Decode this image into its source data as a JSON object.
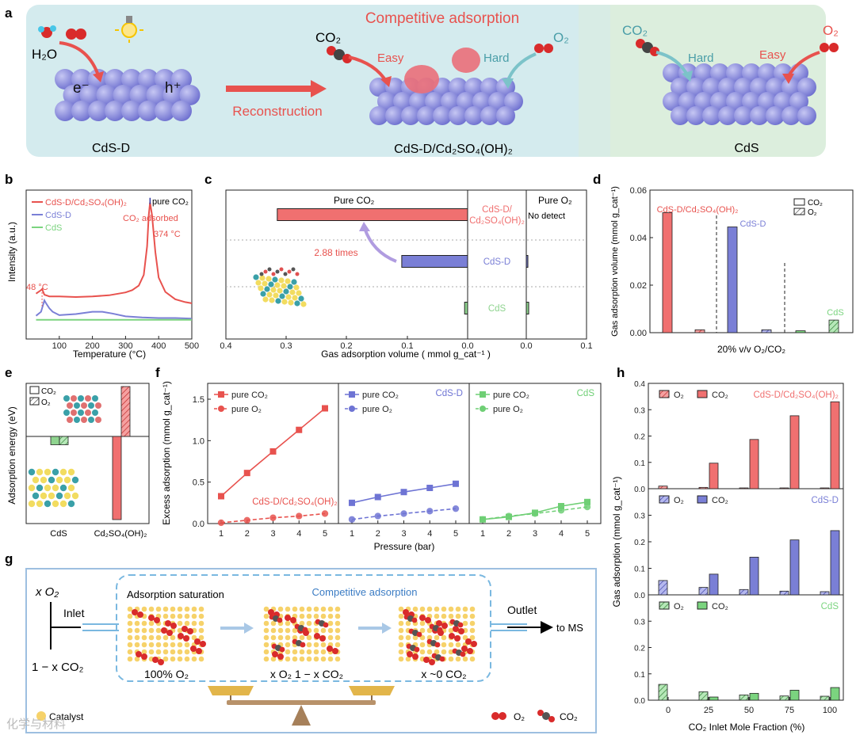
{
  "figure": {
    "panel_labels": [
      "a",
      "b",
      "c",
      "d",
      "e",
      "f",
      "g",
      "h"
    ],
    "watermark": "化学与材料"
  },
  "panel_a": {
    "title_competitive": "Competitive adsorption",
    "h2o": "H₂O",
    "electron": "e⁻",
    "hole": "h⁺",
    "reconstruction": "Reconstruction",
    "co2": "CO₂",
    "o2": "O₂",
    "easy": "Easy",
    "hard": "Hard",
    "label_cdsd": "CdS-D",
    "label_composite": "CdS-D/Cd₂SO₄(OH)₂",
    "label_cds": "CdS",
    "colors": {
      "left_bg": "#d4ebee",
      "right_bg": "#dceedd",
      "sphere": "#8f90df",
      "sulfur": "#f2e84a",
      "arrow": "#e8524e"
    }
  },
  "chart_data": [
    {
      "panel": "b",
      "type": "line",
      "title": "pure CO₂",
      "xlabel": "Temperature (°C)",
      "ylabel": "Intensity (a.u.)",
      "xlim": [
        0,
        500
      ],
      "x_ticks": [
        "100",
        "200",
        "300",
        "400",
        "500"
      ],
      "legend": [
        "CdS-D/Cd₂SO₄(OH)₂",
        "CdS-D",
        "CdS"
      ],
      "annotations": [
        "CO₂ adsorbed",
        "374 °C",
        "48 °C"
      ],
      "series": [
        {
          "name": "CdS-D/Cd₂SO₄(OH)₂",
          "color": "#e8524e",
          "x": [
            30,
            45,
            48,
            55,
            70,
            100,
            150,
            200,
            250,
            300,
            320,
            340,
            355,
            365,
            370,
            374,
            380,
            390,
            400,
            420,
            450,
            480,
            500
          ],
          "y": [
            0.52,
            0.58,
            0.6,
            0.5,
            0.47,
            0.47,
            0.46,
            0.47,
            0.49,
            0.54,
            0.58,
            0.66,
            0.85,
            1.35,
            1.9,
            2.12,
            1.9,
            1.25,
            0.8,
            0.55,
            0.42,
            0.37,
            0.35
          ]
        },
        {
          "name": "CdS-D",
          "color": "#7a7fd6",
          "x": [
            30,
            45,
            55,
            60,
            70,
            80,
            100,
            150,
            200,
            230,
            260,
            300,
            350,
            400,
            450,
            500
          ],
          "y": [
            0.13,
            0.2,
            0.4,
            0.35,
            0.26,
            0.2,
            0.14,
            0.16,
            0.2,
            0.2,
            0.17,
            0.12,
            0.1,
            0.09,
            0.09,
            0.08
          ]
        },
        {
          "name": "CdS",
          "color": "#7bd47f",
          "x": [
            30,
            100,
            200,
            300,
            400,
            500
          ],
          "y": [
            0.06,
            0.06,
            0.06,
            0.06,
            0.06,
            0.06
          ]
        }
      ]
    },
    {
      "panel": "c",
      "type": "bar",
      "orientation": "horizontal",
      "xlabel": "Gas adsorption volume ( mmol g_cat⁻¹ )",
      "x_ticks": [
        "0.4",
        "0.3",
        "0.2",
        "0.1",
        "0.0",
        "0.1"
      ],
      "left_label": "Pure CO₂",
      "right_label": "Pure O₂",
      "no_detect": "No detect",
      "ratio_label": "2.88 times",
      "categories": [
        "CdS-D/Cd₂SO₄(OH)₂",
        "CdS-D",
        "CdS"
      ],
      "category_lines": [
        [
          "CdS-D/",
          "Cd₂SO₄(OH)₂"
        ],
        [
          "CdS-D"
        ],
        [
          "CdS"
        ]
      ],
      "co2_values": [
        0.315,
        0.109,
        0.005
      ],
      "o2_values": [
        0.0,
        0.002,
        0.004
      ],
      "colors": [
        "#f07070",
        "#7a7fd6",
        "#8fd48f"
      ]
    },
    {
      "panel": "d",
      "type": "bar",
      "xlabel": "20% v/v O₂/CO₂",
      "ylabel": "Gas adsorption volume (mmol g_cat⁻¹)",
      "ylim": [
        0,
        0.06
      ],
      "y_ticks": [
        "0.00",
        "0.02",
        "0.04",
        "0.06"
      ],
      "legend": [
        "CO₂",
        "O₂"
      ],
      "categories": [
        "CdS-D/Cd₂SO₄(OH)₂",
        "CdS-D",
        "CdS"
      ],
      "series": [
        {
          "name": "CO₂",
          "values": [
            0.0505,
            0.0445,
            0.0008
          ]
        },
        {
          "name": "O₂",
          "values": [
            0.0012,
            0.0012,
            0.0053
          ]
        }
      ],
      "colors": [
        "#f07070",
        "#7a7fd6",
        "#7bd47f"
      ]
    },
    {
      "panel": "e",
      "type": "bar",
      "ylabel": "Adsorption energy (eV)",
      "categories": [
        "CdS",
        "Cd₂SO₄(OH)₂"
      ],
      "legend": [
        "CO₂",
        "O₂"
      ],
      "series": [
        {
          "name": "CO₂",
          "values": [
            -0.3,
            -3.0
          ]
        },
        {
          "name": "O₂",
          "values": [
            -0.3,
            1.8
          ]
        }
      ]
    },
    {
      "panel": "f",
      "type": "line",
      "xlabel": "Pressure (bar)",
      "ylabel": "Excess adsorption (mmol g_cat⁻¹)",
      "ylim": [
        0,
        1.5
      ],
      "y_ticks": [
        "0.0",
        "0.5",
        "1.0",
        "1.5"
      ],
      "x": [
        1,
        2,
        3,
        4,
        5
      ],
      "subplots": [
        {
          "label": "CdS-D/Cd₂SO₄(OH)₂",
          "color": "#e8524e",
          "series": [
            {
              "name": "pure CO₂",
              "values": [
                0.33,
                0.61,
                0.87,
                1.13,
                1.39
              ]
            },
            {
              "name": "pure O₂",
              "values": [
                0.01,
                0.04,
                0.07,
                0.09,
                0.12
              ]
            }
          ]
        },
        {
          "label": "CdS-D",
          "color": "#6e74d4",
          "series": [
            {
              "name": "pure CO₂",
              "values": [
                0.25,
                0.32,
                0.38,
                0.43,
                0.48
              ]
            },
            {
              "name": "pure O₂",
              "values": [
                0.05,
                0.09,
                0.12,
                0.15,
                0.18
              ]
            }
          ]
        },
        {
          "label": "CdS",
          "color": "#6fcf75",
          "series": [
            {
              "name": "pure CO₂",
              "values": [
                0.05,
                0.08,
                0.13,
                0.21,
                0.26
              ]
            },
            {
              "name": "pure O₂",
              "values": [
                0.05,
                0.09,
                0.12,
                0.16,
                0.2
              ]
            }
          ]
        }
      ]
    },
    {
      "panel": "h",
      "type": "bar",
      "xlabel": "CO₂ Inlet Mole Fraction (%)",
      "ylabel": "Gas adsorption (mmol g_cat⁻¹)",
      "ylim": [
        0,
        0.4
      ],
      "y_ticks": [
        "0.0",
        "0.1",
        "0.2",
        "0.3",
        "0.4"
      ],
      "categories": [
        "0",
        "25",
        "50",
        "75",
        "100"
      ],
      "subplots": [
        {
          "label": "CdS-D/Cd₂SO₄(OH)₂",
          "color": "#f07070",
          "series": [
            {
              "name": "O₂",
              "values": [
                0.01,
                0.005,
                0.003,
                0.003,
                0.003
              ]
            },
            {
              "name": "CO₂",
              "values": [
                0.0,
                0.097,
                0.187,
                0.277,
                0.33
              ]
            }
          ]
        },
        {
          "label": "CdS-D",
          "color": "#7a7fd6",
          "series": [
            {
              "name": "O₂",
              "values": [
                0.054,
                0.028,
                0.02,
                0.014,
                0.012
              ]
            },
            {
              "name": "CO₂",
              "values": [
                0.0,
                0.078,
                0.142,
                0.207,
                0.242
              ]
            }
          ]
        },
        {
          "label": "CdS",
          "color": "#7bd47f",
          "series": [
            {
              "name": "O₂",
              "values": [
                0.06,
                0.032,
                0.02,
                0.016,
                0.015
              ]
            },
            {
              "name": "CO₂",
              "values": [
                0.0,
                0.012,
                0.026,
                0.038,
                0.048
              ]
            }
          ]
        }
      ]
    }
  ],
  "panel_g": {
    "xo2": "x O₂",
    "inlet": "Inlet",
    "one_minus_x": "1 − x CO₂",
    "adsorption_saturation": "Adsorption saturation",
    "competitive_adsorption": "Competitive adsorption",
    "outlet": "Outlet",
    "to_ms": "to MS",
    "stage1": "100% O₂",
    "stage2": "x O₂  1 − x CO₂",
    "stage3": "x ~0 CO₂",
    "catalyst": "Catalyst",
    "legend_o2": "O₂",
    "legend_co2": "CO₂"
  }
}
